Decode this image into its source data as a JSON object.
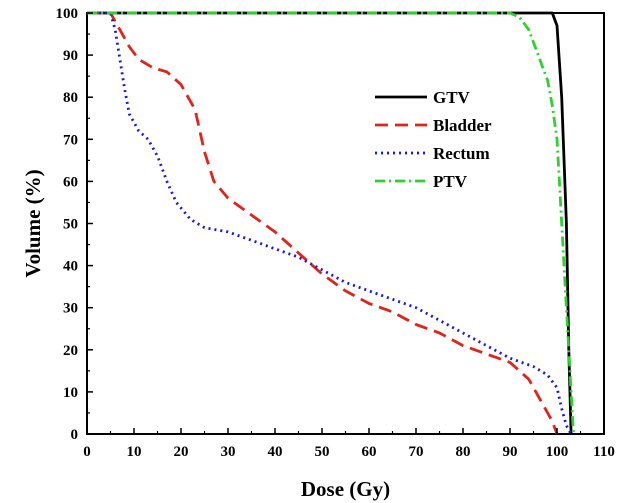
{
  "chart_data": {
    "type": "line",
    "xlabel": "Dose (Gy)",
    "ylabel": "Volume (%)",
    "xlim": [
      0,
      110
    ],
    "ylim": [
      0,
      100
    ],
    "xticks": [
      "0",
      "10",
      "20",
      "30",
      "40",
      "50",
      "60",
      "70",
      "80",
      "90",
      "100",
      "110"
    ],
    "yticks": [
      "0",
      "10",
      "20",
      "30",
      "40",
      "50",
      "60",
      "70",
      "80",
      "90",
      "100"
    ],
    "grid": false,
    "legend_position": "top-right",
    "series": [
      {
        "name": "GTV",
        "color": "#000000",
        "dash": "solid",
        "points": [
          [
            0,
            100
          ],
          [
            99,
            100
          ],
          [
            100,
            97
          ],
          [
            101,
            80
          ],
          [
            102,
            50
          ],
          [
            102.5,
            20
          ],
          [
            103,
            0
          ]
        ]
      },
      {
        "name": "Bladder",
        "color": "#e2231a",
        "dash": "dash",
        "points": [
          [
            0,
            100
          ],
          [
            5,
            100
          ],
          [
            7,
            96
          ],
          [
            9,
            92
          ],
          [
            11,
            89
          ],
          [
            14,
            87
          ],
          [
            17,
            86
          ],
          [
            20,
            83
          ],
          [
            23,
            77
          ],
          [
            25,
            67
          ],
          [
            27,
            60
          ],
          [
            30,
            56
          ],
          [
            35,
            52
          ],
          [
            40,
            48
          ],
          [
            45,
            43
          ],
          [
            50,
            38
          ],
          [
            55,
            34
          ],
          [
            60,
            31
          ],
          [
            65,
            29
          ],
          [
            70,
            26
          ],
          [
            75,
            24
          ],
          [
            80,
            21
          ],
          [
            85,
            19
          ],
          [
            90,
            17
          ],
          [
            94,
            13
          ],
          [
            97,
            7
          ],
          [
            99,
            3
          ],
          [
            100,
            0
          ]
        ]
      },
      {
        "name": "Rectum",
        "color": "#1a1adb",
        "dash": "dot",
        "points": [
          [
            0,
            100
          ],
          [
            5,
            100
          ],
          [
            6,
            96
          ],
          [
            7,
            89
          ],
          [
            8,
            82
          ],
          [
            9,
            76
          ],
          [
            11,
            72
          ],
          [
            13,
            70
          ],
          [
            15,
            66
          ],
          [
            17,
            60
          ],
          [
            19,
            55
          ],
          [
            22,
            51
          ],
          [
            25,
            49
          ],
          [
            30,
            48
          ],
          [
            35,
            46
          ],
          [
            40,
            44
          ],
          [
            45,
            42
          ],
          [
            50,
            39
          ],
          [
            55,
            36
          ],
          [
            60,
            34
          ],
          [
            65,
            32
          ],
          [
            70,
            30
          ],
          [
            75,
            27
          ],
          [
            80,
            24
          ],
          [
            85,
            21
          ],
          [
            90,
            18
          ],
          [
            95,
            16
          ],
          [
            98,
            14
          ],
          [
            100,
            11
          ],
          [
            101,
            6
          ],
          [
            102,
            2
          ],
          [
            103,
            0
          ]
        ]
      },
      {
        "name": "PTV",
        "color": "#2fd02f",
        "dash": "dashdot",
        "points": [
          [
            0,
            100
          ],
          [
            90,
            100
          ],
          [
            92,
            99
          ],
          [
            94,
            96
          ],
          [
            96,
            90
          ],
          [
            98,
            84
          ],
          [
            99,
            78
          ],
          [
            100,
            70
          ],
          [
            100.5,
            60
          ],
          [
            101,
            50
          ],
          [
            101.5,
            40
          ],
          [
            102,
            30
          ],
          [
            102.5,
            20
          ],
          [
            103,
            10
          ],
          [
            103.5,
            0
          ]
        ]
      }
    ]
  }
}
